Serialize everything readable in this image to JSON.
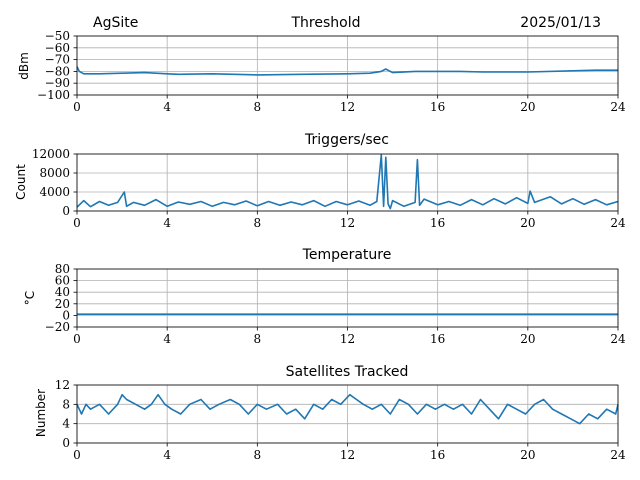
{
  "header": {
    "site": "AgSite",
    "date": "2025/01/13"
  },
  "colors": {
    "series": "#1f77b4",
    "grid": "#b0b0b0"
  },
  "chart_data": [
    {
      "type": "line",
      "title": "Threshold",
      "ylabel": "dBm",
      "xlim": [
        0,
        24
      ],
      "ylim": [
        -100,
        -50
      ],
      "xticks": [
        "0",
        "4",
        "8",
        "12",
        "16",
        "20",
        "24"
      ],
      "yticks": [
        "−50",
        "−60",
        "−70",
        "−80",
        "−90",
        "−100"
      ],
      "grid": true,
      "series": [
        {
          "x": [
            0,
            0.1,
            0.3,
            1,
            2,
            3,
            4,
            4.5,
            6,
            8,
            10,
            12,
            13,
            13.5,
            13.7,
            13.9,
            14,
            15,
            16,
            17,
            18,
            20,
            22,
            23,
            24
          ],
          "values": [
            -76,
            -80,
            -82,
            -82,
            -81.5,
            -81,
            -82,
            -82.5,
            -82,
            -83,
            -82.5,
            -82,
            -81.5,
            -80,
            -78,
            -80,
            -81,
            -80,
            -80,
            -80,
            -80.5,
            -80.5,
            -79.5,
            -79,
            -79
          ]
        }
      ]
    },
    {
      "type": "line",
      "title": "Triggers/sec",
      "ylabel": "Count",
      "xlim": [
        0,
        24
      ],
      "ylim": [
        0,
        12000
      ],
      "xticks": [
        "0",
        "4",
        "8",
        "12",
        "16",
        "20",
        "24"
      ],
      "yticks": [
        "12000",
        "8000",
        "4000",
        "0"
      ],
      "grid": true,
      "series": [
        {
          "x": [
            0,
            0.3,
            0.6,
            1,
            1.4,
            1.8,
            2.1,
            2.2,
            2.5,
            3,
            3.5,
            4,
            4.5,
            5,
            5.5,
            6,
            6.5,
            7,
            7.5,
            8,
            8.5,
            9,
            9.5,
            10,
            10.5,
            11,
            11.5,
            12,
            12.5,
            13,
            13.3,
            13.5,
            13.6,
            13.7,
            13.8,
            13.9,
            14,
            14.5,
            15,
            15.1,
            15.2,
            15.4,
            16,
            16.5,
            17,
            17.5,
            18,
            18.5,
            19,
            19.5,
            20,
            20.1,
            20.3,
            21,
            21.5,
            22,
            22.5,
            23,
            23.5,
            24
          ],
          "values": [
            800,
            2200,
            900,
            2000,
            1200,
            1800,
            4000,
            1000,
            1800,
            1200,
            2400,
            1000,
            1900,
            1400,
            2000,
            1000,
            1800,
            1300,
            2100,
            1100,
            2000,
            1200,
            1900,
            1300,
            2200,
            1000,
            2000,
            1300,
            2100,
            1200,
            2000,
            11800,
            1000,
            11300,
            1500,
            500,
            2200,
            1000,
            1800,
            10800,
            1200,
            2500,
            1300,
            2000,
            1200,
            2400,
            1300,
            2600,
            1500,
            2800,
            1600,
            4200,
            1800,
            3000,
            1500,
            2600,
            1400,
            2400,
            1300,
            2000
          ]
        }
      ]
    },
    {
      "type": "line",
      "title": "Temperature",
      "ylabel": "°C",
      "xlim": [
        0,
        24
      ],
      "ylim": [
        -20,
        80
      ],
      "xticks": [
        "0",
        "4",
        "8",
        "12",
        "16",
        "20",
        "24"
      ],
      "yticks": [
        "80",
        "60",
        "40",
        "20",
        "0",
        "−20"
      ],
      "grid": true,
      "series": [
        {
          "x": [
            0,
            24
          ],
          "values": [
            2,
            2
          ]
        }
      ]
    },
    {
      "type": "line",
      "title": "Satellites Tracked",
      "ylabel": "Number",
      "xlim": [
        0,
        24
      ],
      "ylim": [
        0,
        12
      ],
      "xticks": [
        "0",
        "4",
        "8",
        "12",
        "16",
        "20",
        "24"
      ],
      "yticks": [
        "12",
        "8",
        "4",
        "0"
      ],
      "grid": true,
      "series": [
        {
          "x": [
            0,
            0.2,
            0.4,
            0.6,
            1,
            1.4,
            1.8,
            2,
            2.2,
            2.6,
            3,
            3.3,
            3.6,
            3.9,
            4.2,
            4.6,
            5,
            5.5,
            5.9,
            6.3,
            6.8,
            7.2,
            7.6,
            8,
            8.4,
            8.9,
            9.3,
            9.7,
            10.1,
            10.5,
            10.9,
            11.3,
            11.7,
            12.1,
            12.4,
            12.7,
            13.1,
            13.5,
            13.9,
            14.3,
            14.7,
            15.1,
            15.5,
            15.9,
            16.3,
            16.7,
            17.1,
            17.5,
            17.9,
            18.3,
            18.7,
            19.1,
            19.5,
            19.9,
            20.3,
            20.7,
            21.1,
            21.5,
            21.9,
            22.3,
            22.7,
            23.1,
            23.5,
            23.9,
            24
          ],
          "values": [
            8,
            6,
            8,
            7,
            8,
            6,
            8,
            10,
            9,
            8,
            7,
            8,
            10,
            8,
            7,
            6,
            8,
            9,
            7,
            8,
            9,
            8,
            6,
            8,
            7,
            8,
            6,
            7,
            5,
            8,
            7,
            9,
            8,
            10,
            9,
            8,
            7,
            8,
            6,
            9,
            8,
            6,
            8,
            7,
            8,
            7,
            8,
            6,
            9,
            7,
            5,
            8,
            7,
            6,
            8,
            9,
            7,
            6,
            5,
            4,
            6,
            5,
            7,
            6,
            8
          ]
        }
      ]
    }
  ]
}
